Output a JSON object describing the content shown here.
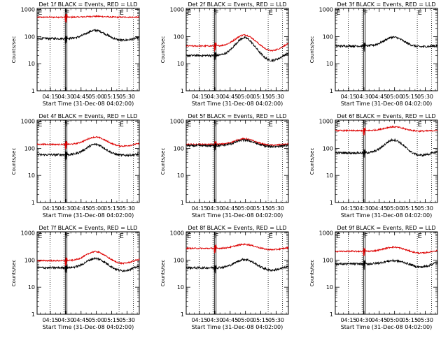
{
  "chart_data": {
    "type": "line",
    "title_template": "Det {d}f BLACK = Events, RED = LLD",
    "xlabel": "Start Time (31-Dec-08 04:02:00)",
    "ylabel": "Counts/sec",
    "x_axis": {
      "unit": "minutes after 04:02:00",
      "range": [
        0,
        100
      ],
      "tick_values": [
        13,
        28,
        43,
        58,
        73,
        88
      ],
      "tick_labels": [
        "04:15",
        "04:30",
        "04:45",
        "05:00",
        "05:15",
        "05:30"
      ]
    },
    "y_axis": {
      "scale": "log",
      "range": [
        1,
        1100
      ],
      "tick_values": [
        1,
        10,
        100,
        1000
      ],
      "tick_labels": [
        "1",
        "10",
        "100",
        "1000"
      ]
    },
    "series_colors": {
      "events": "#000000",
      "lld": "#dd0000"
    },
    "markers": {
      "dotted_lines_x": [
        12.6,
        26.2,
        80.2,
        94.2
      ],
      "solid_lines_x": [
        27.6,
        29.2
      ],
      "letters": [
        {
          "text": "E",
          "x": 0.8
        },
        {
          "text": "F",
          "x": 27.9
        },
        {
          "text": "E",
          "x": 80.6
        }
      ]
    },
    "panels": [
      {
        "detector": "1",
        "events": {
          "base": 85,
          "peak": 170,
          "dip": 72
        },
        "lld": {
          "base": 520,
          "peak": 560,
          "dip": 520
        }
      },
      {
        "detector": "2",
        "events": {
          "base": 20,
          "peak": 90,
          "dip": 13
        },
        "lld": {
          "base": 45,
          "peak": 115,
          "dip": 30
        }
      },
      {
        "detector": "3",
        "events": {
          "base": 45,
          "peak": 95,
          "dip": 42
        },
        "lld": null
      },
      {
        "detector": "4",
        "events": {
          "base": 58,
          "peak": 140,
          "dip": 55
        },
        "lld": {
          "base": 140,
          "peak": 260,
          "dip": 120
        }
      },
      {
        "detector": "5",
        "events": {
          "base": 125,
          "peak": 200,
          "dip": 115
        },
        "lld": {
          "base": 140,
          "peak": 225,
          "dip": 130
        }
      },
      {
        "detector": "6",
        "events": {
          "base": 68,
          "peak": 205,
          "dip": 55
        },
        "lld": {
          "base": 450,
          "peak": 620,
          "dip": 430
        }
      },
      {
        "detector": "7",
        "events": {
          "base": 52,
          "peak": 115,
          "dip": 40
        },
        "lld": {
          "base": 95,
          "peak": 205,
          "dip": 75
        }
      },
      {
        "detector": "8",
        "events": {
          "base": 52,
          "peak": 105,
          "dip": 42
        },
        "lld": {
          "base": 270,
          "peak": 380,
          "dip": 240
        }
      },
      {
        "detector": "9",
        "events": {
          "base": 72,
          "peak": 95,
          "dip": 55
        },
        "lld": {
          "base": 210,
          "peak": 300,
          "dip": 180
        }
      }
    ]
  }
}
